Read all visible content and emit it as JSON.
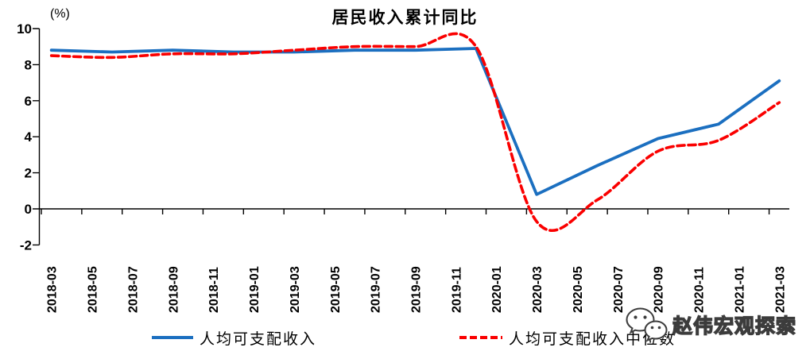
{
  "chart_data": {
    "type": "line",
    "title": "居民收入累计同比",
    "y_unit_label": "(%)",
    "ylim": [
      -2,
      10
    ],
    "yticks": [
      10,
      8,
      6,
      4,
      2,
      0,
      -2
    ],
    "grid": false,
    "legend_position": "bottom",
    "x_tick_labels": [
      "2018-03",
      "2018-05",
      "2018-07",
      "2018-09",
      "2018-11",
      "2019-01",
      "2019-03",
      "2019-05",
      "2019-07",
      "2019-09",
      "2019-11",
      "2020-01",
      "2020-03",
      "2020-05",
      "2020-07",
      "2020-09",
      "2020-11",
      "2021-01",
      "2021-03"
    ],
    "x_data_points": [
      "2018-03",
      "2018-06",
      "2018-09",
      "2018-12",
      "2019-03",
      "2019-06",
      "2019-09",
      "2019-12",
      "2020-03",
      "2020-06",
      "2020-09",
      "2020-12",
      "2021-03"
    ],
    "series": [
      {
        "name": "人均可支配收入",
        "color": "#1B6FC0",
        "line_style": "solid",
        "values": [
          8.8,
          8.7,
          8.8,
          8.7,
          8.7,
          8.8,
          8.8,
          8.9,
          0.8,
          2.4,
          3.9,
          4.7,
          7.1
        ]
      },
      {
        "name": "人均可支配收入中位数",
        "color": "#FA0000",
        "line_style": "dashed",
        "values": [
          8.5,
          8.4,
          8.6,
          8.6,
          8.8,
          9.0,
          9.0,
          9.0,
          -0.7,
          0.5,
          3.2,
          3.8,
          5.9
        ]
      }
    ]
  },
  "watermark": {
    "text": "赵伟宏观探索",
    "icon": "wechat-logo-icon"
  }
}
